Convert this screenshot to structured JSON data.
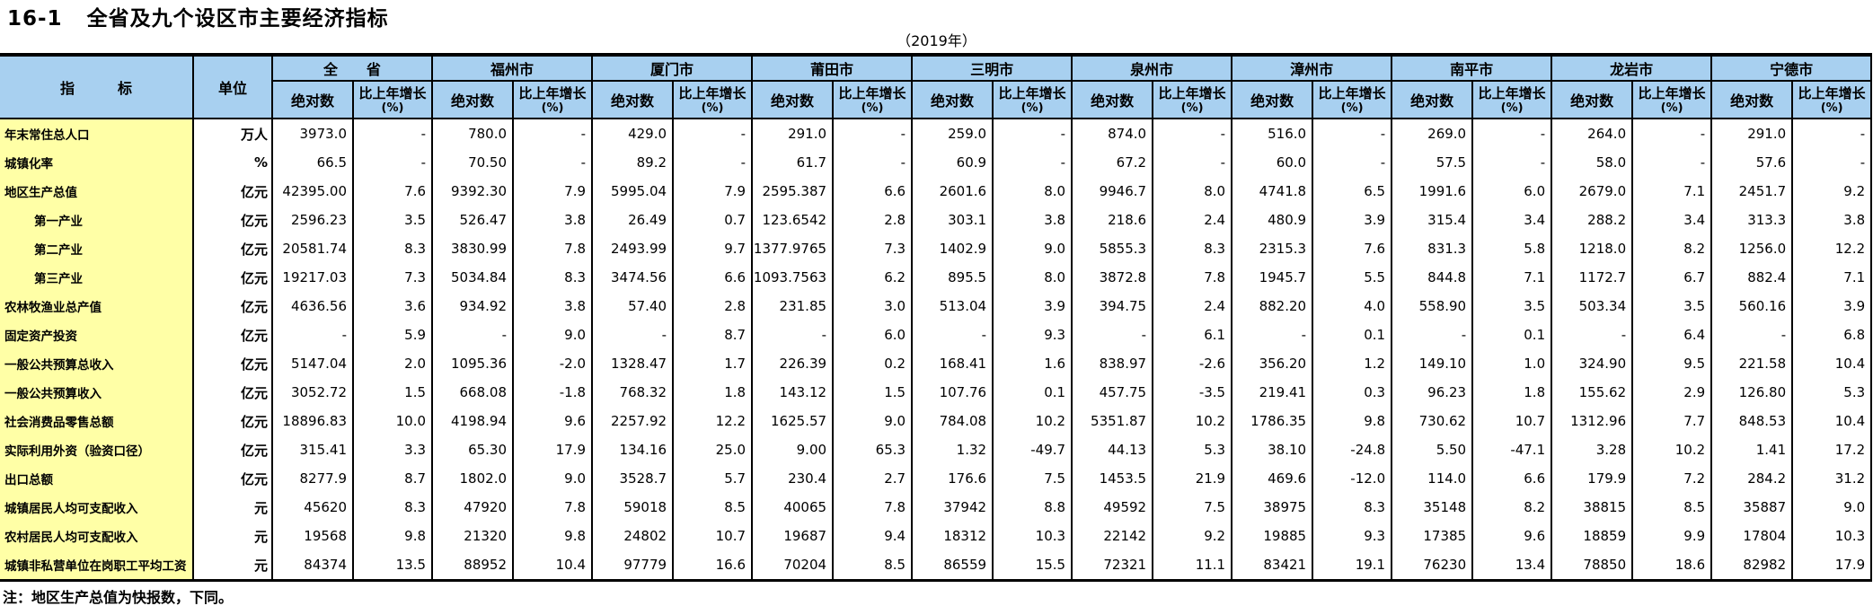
{
  "title": {
    "number": "16-1",
    "text": "全省及九个设区市主要经济指标",
    "year": "（2019年）"
  },
  "note": "注：地区生产总值为快报数，下同。",
  "colors": {
    "header_bg": "#a8d0f0",
    "indicator_bg": "#ffffa6",
    "border": "#000000"
  },
  "table": {
    "indicator_header": "指　　　标",
    "unit_header": "单位",
    "abs_header": "绝对数",
    "growth_header_line1": "比上年增长",
    "growth_header_line2": "(%)",
    "regions": [
      "全　　省",
      "福州市",
      "厦门市",
      "莆田市",
      "三明市",
      "泉州市",
      "漳州市",
      "南平市",
      "龙岩市",
      "宁德市"
    ],
    "rows": [
      {
        "label": "年末常住总人口",
        "indent": false,
        "unit": "万人",
        "values": [
          [
            "3973.0",
            "-"
          ],
          [
            "780.0",
            "-"
          ],
          [
            "429.0",
            "-"
          ],
          [
            "291.0",
            "-"
          ],
          [
            "259.0",
            "-"
          ],
          [
            "874.0",
            "-"
          ],
          [
            "516.0",
            "-"
          ],
          [
            "269.0",
            "-"
          ],
          [
            "264.0",
            "-"
          ],
          [
            "291.0",
            "-"
          ]
        ]
      },
      {
        "label": "城镇化率",
        "indent": false,
        "unit": "%",
        "values": [
          [
            "66.5",
            "-"
          ],
          [
            "70.50",
            "-"
          ],
          [
            "89.2",
            "-"
          ],
          [
            "61.7",
            "-"
          ],
          [
            "60.9",
            "-"
          ],
          [
            "67.2",
            "-"
          ],
          [
            "60.0",
            "-"
          ],
          [
            "57.5",
            "-"
          ],
          [
            "58.0",
            "-"
          ],
          [
            "57.6",
            "-"
          ]
        ]
      },
      {
        "label": "地区生产总值",
        "indent": false,
        "unit": "亿元",
        "values": [
          [
            "42395.00",
            "7.6"
          ],
          [
            "9392.30",
            "7.9"
          ],
          [
            "5995.04",
            "7.9"
          ],
          [
            "2595.387",
            "6.6"
          ],
          [
            "2601.6",
            "8.0"
          ],
          [
            "9946.7",
            "8.0"
          ],
          [
            "4741.8",
            "6.5"
          ],
          [
            "1991.6",
            "6.0"
          ],
          [
            "2679.0",
            "7.1"
          ],
          [
            "2451.7",
            "9.2"
          ]
        ]
      },
      {
        "label": "第一产业",
        "indent": true,
        "unit": "亿元",
        "values": [
          [
            "2596.23",
            "3.5"
          ],
          [
            "526.47",
            "3.8"
          ],
          [
            "26.49",
            "0.7"
          ],
          [
            "123.6542",
            "2.8"
          ],
          [
            "303.1",
            "3.8"
          ],
          [
            "218.6",
            "2.4"
          ],
          [
            "480.9",
            "3.9"
          ],
          [
            "315.4",
            "3.4"
          ],
          [
            "288.2",
            "3.4"
          ],
          [
            "313.3",
            "3.8"
          ]
        ]
      },
      {
        "label": "第二产业",
        "indent": true,
        "unit": "亿元",
        "values": [
          [
            "20581.74",
            "8.3"
          ],
          [
            "3830.99",
            "7.8"
          ],
          [
            "2493.99",
            "9.7"
          ],
          [
            "1377.9765",
            "7.3"
          ],
          [
            "1402.9",
            "9.0"
          ],
          [
            "5855.3",
            "8.3"
          ],
          [
            "2315.3",
            "7.6"
          ],
          [
            "831.3",
            "5.8"
          ],
          [
            "1218.0",
            "8.2"
          ],
          [
            "1256.0",
            "12.2"
          ]
        ]
      },
      {
        "label": "第三产业",
        "indent": true,
        "unit": "亿元",
        "values": [
          [
            "19217.03",
            "7.3"
          ],
          [
            "5034.84",
            "8.3"
          ],
          [
            "3474.56",
            "6.6"
          ],
          [
            "1093.7563",
            "6.2"
          ],
          [
            "895.5",
            "8.0"
          ],
          [
            "3872.8",
            "7.8"
          ],
          [
            "1945.7",
            "5.5"
          ],
          [
            "844.8",
            "7.1"
          ],
          [
            "1172.7",
            "6.7"
          ],
          [
            "882.4",
            "7.1"
          ]
        ]
      },
      {
        "label": "农林牧渔业总产值",
        "indent": false,
        "unit": "亿元",
        "values": [
          [
            "4636.56",
            "3.6"
          ],
          [
            "934.92",
            "3.8"
          ],
          [
            "57.40",
            "2.8"
          ],
          [
            "231.85",
            "3.0"
          ],
          [
            "513.04",
            "3.9"
          ],
          [
            "394.75",
            "2.4"
          ],
          [
            "882.20",
            "4.0"
          ],
          [
            "558.90",
            "3.5"
          ],
          [
            "503.34",
            "3.5"
          ],
          [
            "560.16",
            "3.9"
          ]
        ]
      },
      {
        "label": "固定资产投资",
        "indent": false,
        "unit": "亿元",
        "values": [
          [
            "-",
            "5.9"
          ],
          [
            "-",
            "9.0"
          ],
          [
            "-",
            "8.7"
          ],
          [
            "-",
            "6.0"
          ],
          [
            "-",
            "9.3"
          ],
          [
            "-",
            "6.1"
          ],
          [
            "-",
            "0.1"
          ],
          [
            "-",
            "0.1"
          ],
          [
            "-",
            "6.4"
          ],
          [
            "-",
            "6.8"
          ]
        ]
      },
      {
        "label": "一般公共预算总收入",
        "indent": false,
        "unit": "亿元",
        "values": [
          [
            "5147.04",
            "2.0"
          ],
          [
            "1095.36",
            "-2.0"
          ],
          [
            "1328.47",
            "1.7"
          ],
          [
            "226.39",
            "0.2"
          ],
          [
            "168.41",
            "1.6"
          ],
          [
            "838.97",
            "-2.6"
          ],
          [
            "356.20",
            "1.2"
          ],
          [
            "149.10",
            "1.0"
          ],
          [
            "324.90",
            "9.5"
          ],
          [
            "221.58",
            "10.4"
          ]
        ]
      },
      {
        "label": "一般公共预算收入",
        "indent": false,
        "unit": "亿元",
        "values": [
          [
            "3052.72",
            "1.5"
          ],
          [
            "668.08",
            "-1.8"
          ],
          [
            "768.32",
            "1.8"
          ],
          [
            "143.12",
            "1.5"
          ],
          [
            "107.76",
            "0.1"
          ],
          [
            "457.75",
            "-3.5"
          ],
          [
            "219.41",
            "0.3"
          ],
          [
            "96.23",
            "1.8"
          ],
          [
            "155.62",
            "2.9"
          ],
          [
            "126.80",
            "5.3"
          ]
        ]
      },
      {
        "label": "社会消费品零售总额",
        "indent": false,
        "unit": "亿元",
        "values": [
          [
            "18896.83",
            "10.0"
          ],
          [
            "4198.94",
            "9.6"
          ],
          [
            "2257.92",
            "12.2"
          ],
          [
            "1625.57",
            "9.0"
          ],
          [
            "784.08",
            "10.2"
          ],
          [
            "5351.87",
            "10.2"
          ],
          [
            "1786.35",
            "9.8"
          ],
          [
            "730.62",
            "10.7"
          ],
          [
            "1312.96",
            "7.7"
          ],
          [
            "848.53",
            "10.4"
          ]
        ]
      },
      {
        "label": "实际利用外资（验资口径）",
        "indent": false,
        "unit": "亿元",
        "values": [
          [
            "315.41",
            "3.3"
          ],
          [
            "65.30",
            "17.9"
          ],
          [
            "134.16",
            "25.0"
          ],
          [
            "9.00",
            "65.3"
          ],
          [
            "1.32",
            "-49.7"
          ],
          [
            "44.13",
            "5.3"
          ],
          [
            "38.10",
            "-24.8"
          ],
          [
            "5.50",
            "-47.1"
          ],
          [
            "3.28",
            "10.2"
          ],
          [
            "1.41",
            "17.2"
          ]
        ]
      },
      {
        "label": "出口总额",
        "indent": false,
        "unit": "亿元",
        "values": [
          [
            "8277.9",
            "8.7"
          ],
          [
            "1802.0",
            "9.0"
          ],
          [
            "3528.7",
            "5.7"
          ],
          [
            "230.4",
            "2.7"
          ],
          [
            "176.6",
            "7.5"
          ],
          [
            "1453.5",
            "21.9"
          ],
          [
            "469.6",
            "-12.0"
          ],
          [
            "114.0",
            "6.6"
          ],
          [
            "179.9",
            "7.2"
          ],
          [
            "284.2",
            "31.2"
          ]
        ]
      },
      {
        "label": "城镇居民人均可支配收入",
        "indent": false,
        "unit": "元",
        "values": [
          [
            "45620",
            "8.3"
          ],
          [
            "47920",
            "7.8"
          ],
          [
            "59018",
            "8.5"
          ],
          [
            "40065",
            "7.8"
          ],
          [
            "37942",
            "8.8"
          ],
          [
            "49592",
            "7.5"
          ],
          [
            "38975",
            "8.3"
          ],
          [
            "35148",
            "8.2"
          ],
          [
            "38815",
            "8.5"
          ],
          [
            "35887",
            "9.0"
          ]
        ]
      },
      {
        "label": "农村居民人均可支配收入",
        "indent": false,
        "unit": "元",
        "values": [
          [
            "19568",
            "9.8"
          ],
          [
            "21320",
            "9.8"
          ],
          [
            "24802",
            "10.7"
          ],
          [
            "19687",
            "9.4"
          ],
          [
            "18312",
            "10.3"
          ],
          [
            "22142",
            "9.2"
          ],
          [
            "19885",
            "9.3"
          ],
          [
            "17385",
            "9.6"
          ],
          [
            "18859",
            "9.9"
          ],
          [
            "17804",
            "10.3"
          ]
        ]
      },
      {
        "label": "城镇非私营单位在岗职工平均工资",
        "indent": false,
        "unit": "元",
        "values": [
          [
            "84374",
            "13.5"
          ],
          [
            "88952",
            "10.4"
          ],
          [
            "97779",
            "16.6"
          ],
          [
            "70204",
            "8.5"
          ],
          [
            "86559",
            "15.5"
          ],
          [
            "72321",
            "11.1"
          ],
          [
            "83421",
            "19.1"
          ],
          [
            "76230",
            "13.4"
          ],
          [
            "78850",
            "18.6"
          ],
          [
            "82982",
            "17.9"
          ]
        ]
      }
    ]
  }
}
